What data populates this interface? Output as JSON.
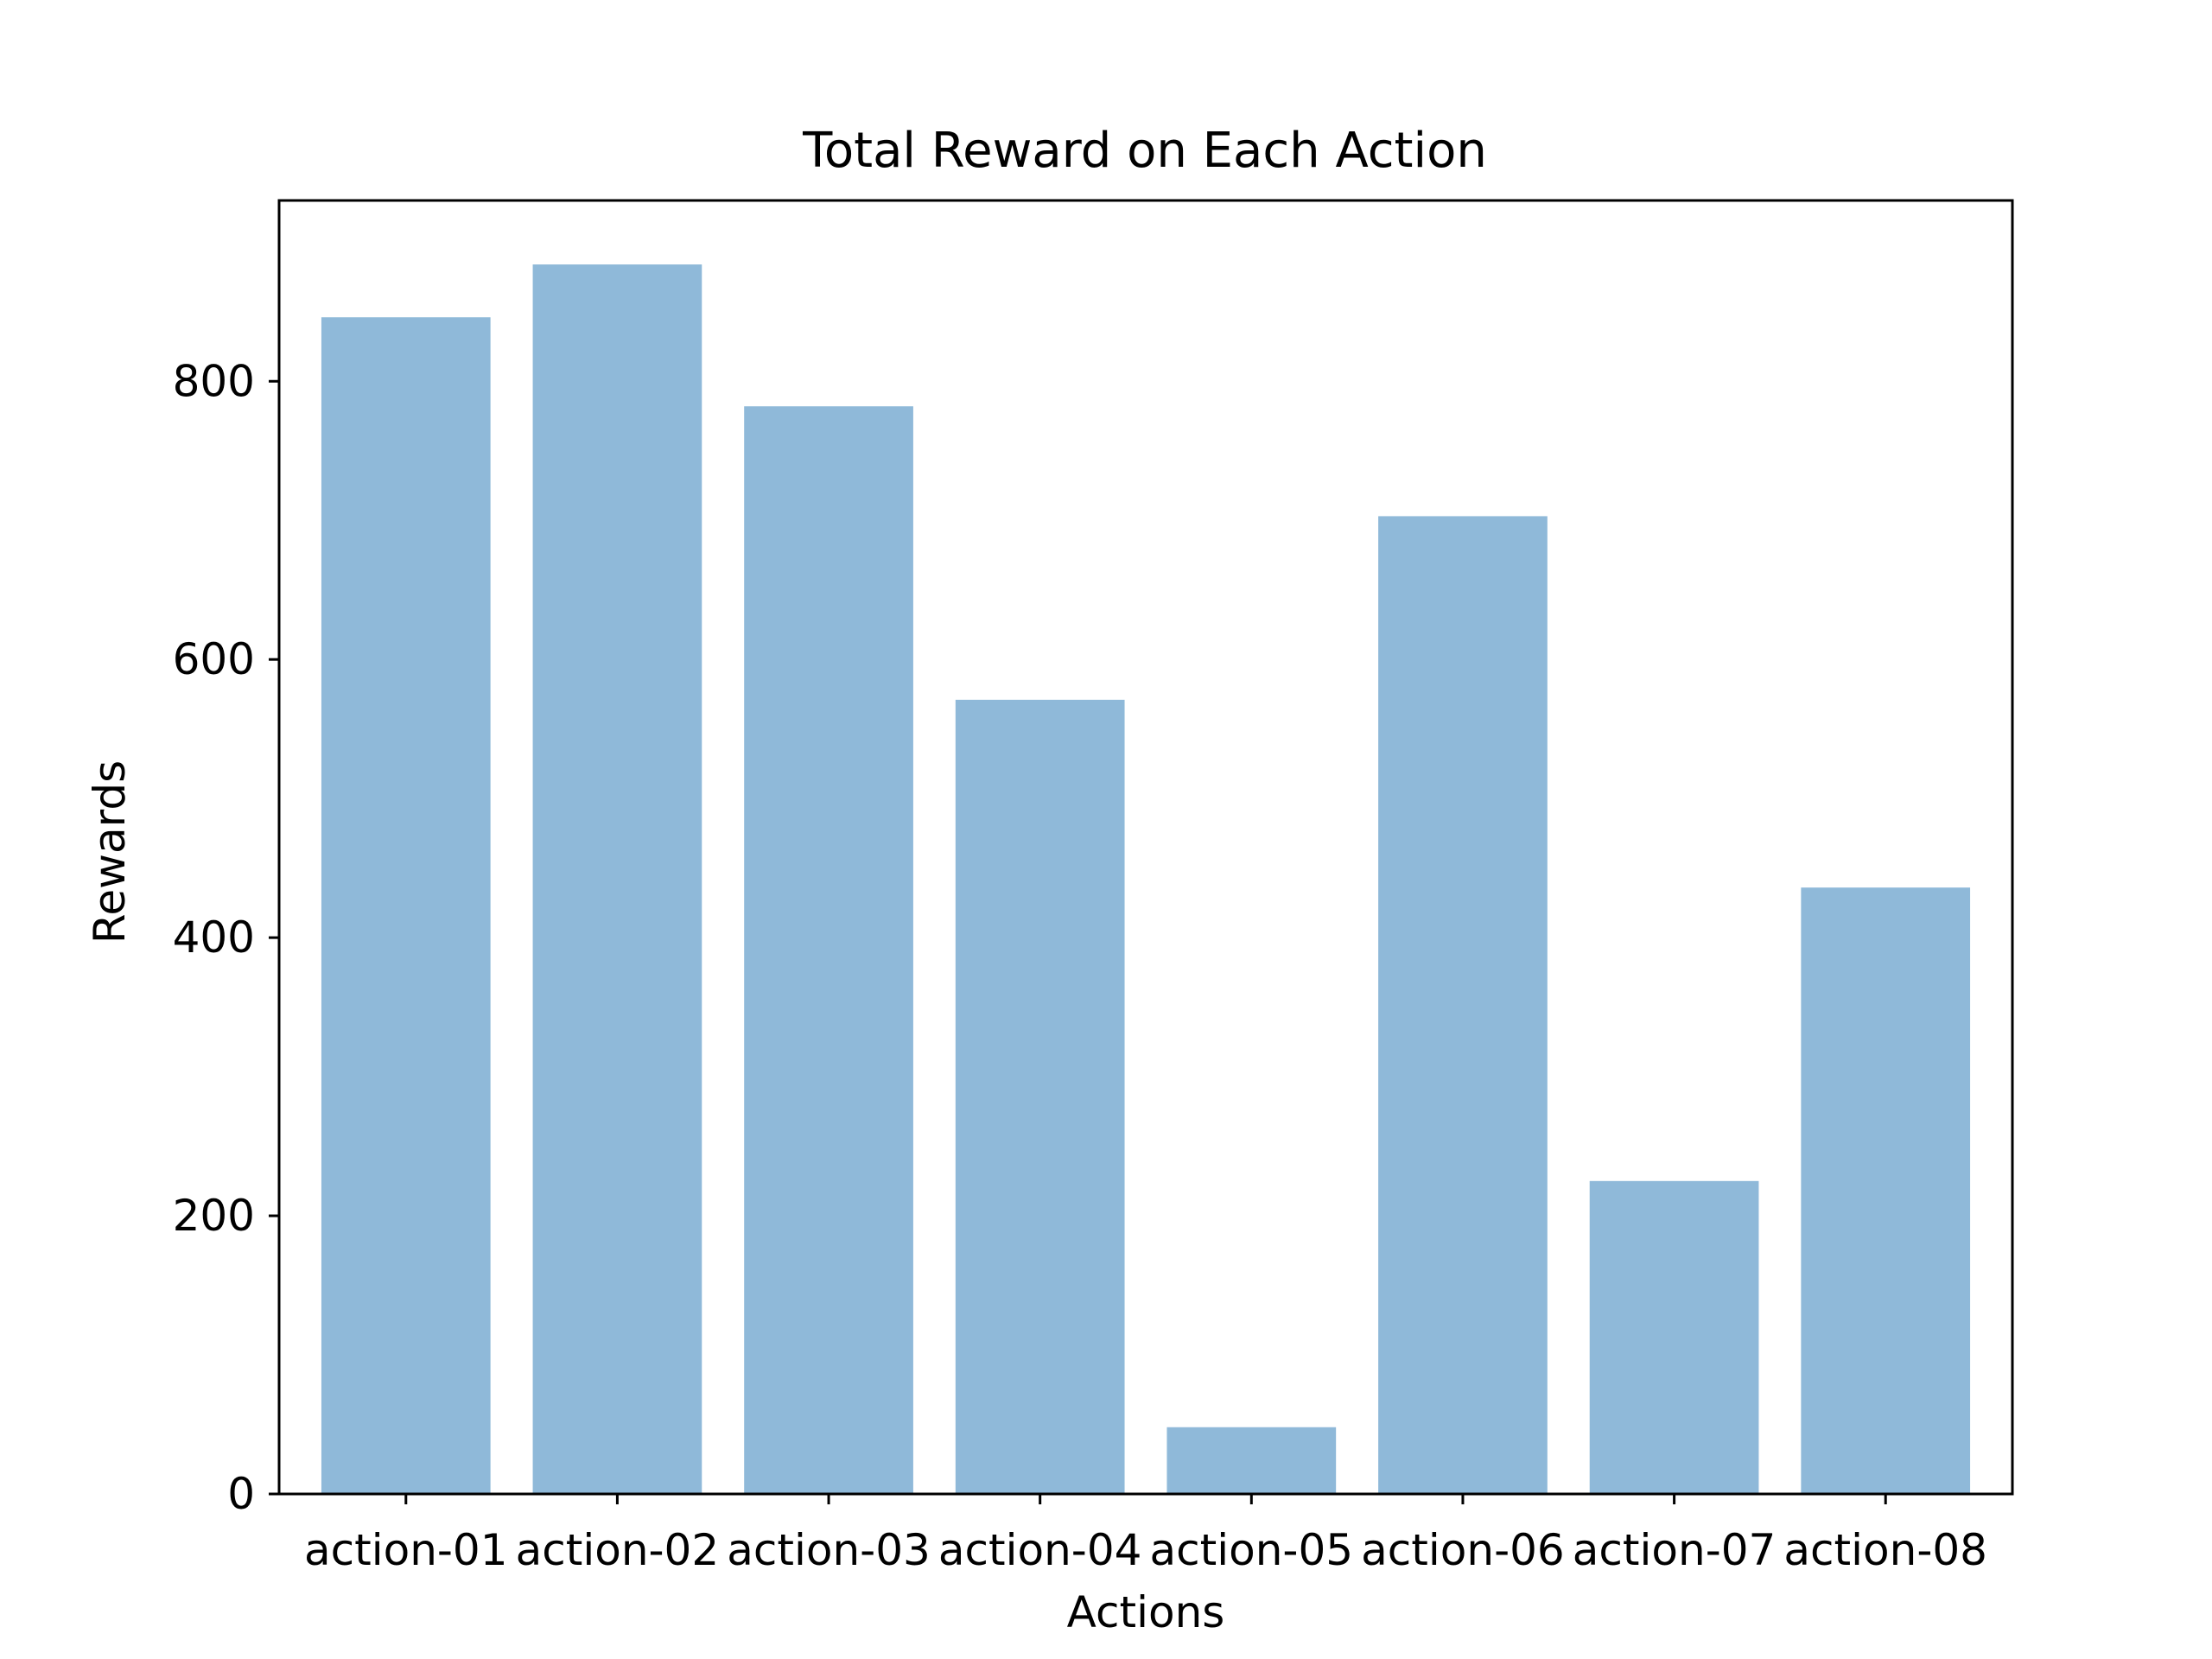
{
  "chart_data": {
    "type": "bar",
    "title": "Total Reward on Each Action",
    "xlabel": "Actions",
    "ylabel": "Rewards",
    "categories": [
      "action-01",
      "action-02",
      "action-03",
      "action-04",
      "action-05",
      "action-06",
      "action-07",
      "action-08"
    ],
    "values": [
      846,
      884,
      782,
      571,
      48,
      703,
      225,
      436
    ],
    "ylim": [
      0,
      930
    ],
    "yticks": [
      0,
      200,
      400,
      600,
      800
    ],
    "ytick_labels": [
      "0",
      "200",
      "400",
      "600",
      "800"
    ],
    "grid": false,
    "legend": "none",
    "bar_color": "#8fb9d9"
  }
}
